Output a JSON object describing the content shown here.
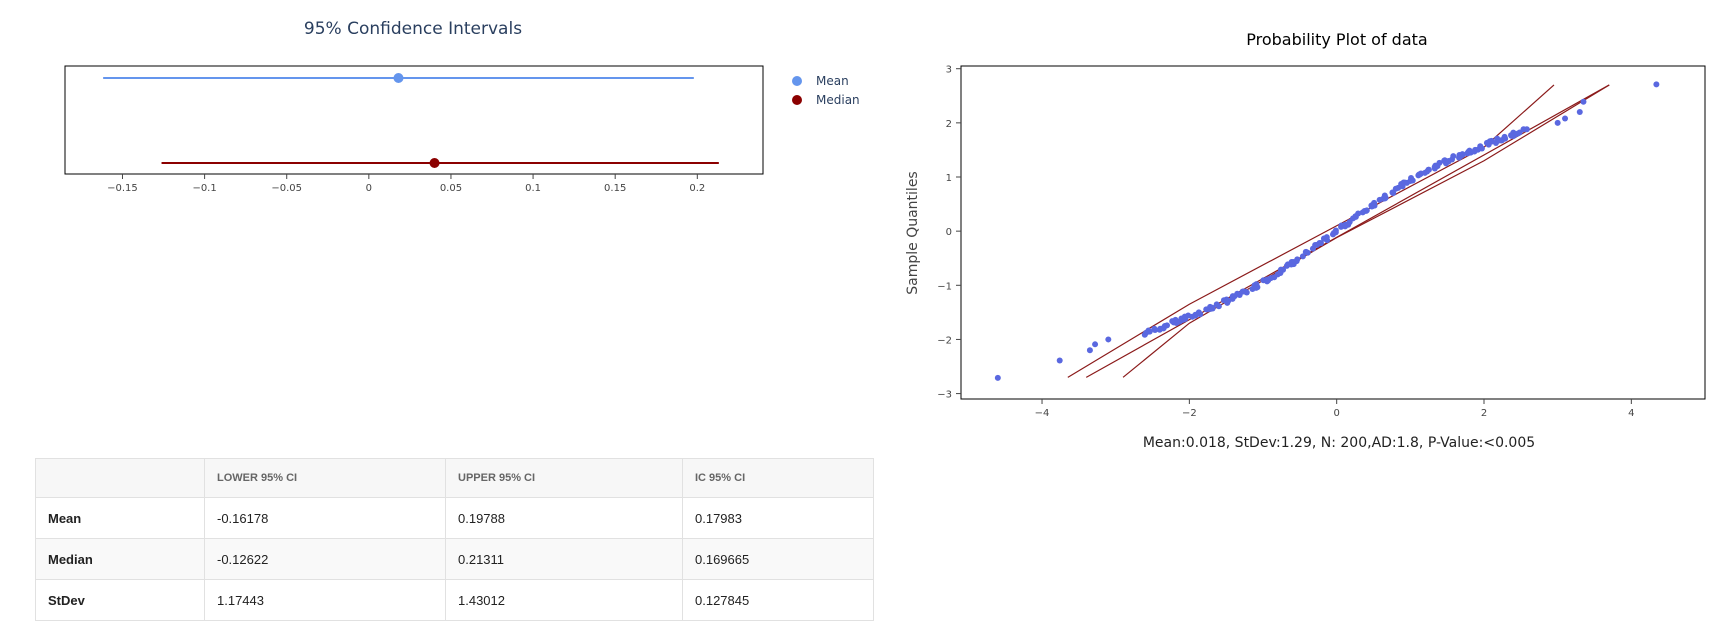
{
  "chart_data": [
    {
      "type": "interval",
      "title": "95% Confidence Intervals",
      "xlim": [
        -0.185,
        0.24
      ],
      "x_ticks": [
        -0.15,
        -0.1,
        -0.05,
        0,
        0.05,
        0.1,
        0.15,
        0.2
      ],
      "x_tick_labels": [
        "−0.15",
        "−0.1",
        "−0.05",
        "0",
        "0.05",
        "0.1",
        "0.15",
        "0.2"
      ],
      "legend_position": "top-right",
      "series": [
        {
          "name": "Mean",
          "lower": -0.16178,
          "upper": 0.19788,
          "center": 0.01805,
          "color": "#6495ed"
        },
        {
          "name": "Median",
          "lower": -0.12622,
          "upper": 0.21311,
          "center": 0.04,
          "color": "#8b0000"
        }
      ]
    },
    {
      "type": "scatter",
      "title": "Probability Plot of data",
      "ylabel": "Sample Quantiles",
      "xlim": [
        -5.1,
        5.0
      ],
      "ylim": [
        -3.1,
        3.05
      ],
      "x_ticks": [
        -4,
        -2,
        0,
        2,
        4
      ],
      "x_tick_labels": [
        "−4",
        "−2",
        "0",
        "2",
        "4"
      ],
      "y_ticks": [
        -3,
        -2,
        -1,
        0,
        1,
        2,
        3
      ],
      "y_tick_labels": [
        "−3",
        "−2",
        "−1",
        "0",
        "1",
        "2",
        "3"
      ],
      "n_points": 200,
      "points_color": "#5a68e0",
      "line_color": "#8b1a1a",
      "fit_line": {
        "x": [
          -3.4,
          3.7
        ],
        "y": [
          -2.7,
          2.7
        ]
      },
      "upper_band": {
        "x": [
          -3.65,
          -2,
          0,
          2,
          2.95
        ],
        "y": [
          -2.7,
          -1.35,
          0.1,
          1.55,
          2.7
        ]
      },
      "lower_band": {
        "x": [
          -2.9,
          -2,
          0,
          2,
          3.7
        ],
        "y": [
          -2.7,
          -1.7,
          -0.12,
          1.3,
          2.7
        ]
      },
      "outliers": [
        {
          "x": -4.6,
          "y": -2.71
        },
        {
          "x": -3.76,
          "y": -2.39
        },
        {
          "x": -3.35,
          "y": -2.2
        },
        {
          "x": -3.28,
          "y": -2.09
        },
        {
          "x": -3.1,
          "y": -2.0
        },
        {
          "x": 3.0,
          "y": 2.0
        },
        {
          "x": 3.1,
          "y": 2.08
        },
        {
          "x": 3.3,
          "y": 2.2
        },
        {
          "x": 3.35,
          "y": 2.39
        },
        {
          "x": 4.34,
          "y": 2.71
        }
      ],
      "footer": "Mean:0.018, StDev:1.29, N: 200,AD:1.8, P-Value:<0.005"
    }
  ],
  "table": {
    "headers": [
      "",
      "LOWER 95% CI",
      "UPPER 95% CI",
      "IC 95% CI"
    ],
    "rows": [
      [
        "Mean",
        "-0.16178",
        "0.19788",
        "0.17983"
      ],
      [
        "Median",
        "-0.12622",
        "0.21311",
        "0.169665"
      ],
      [
        "StDev",
        "1.17443",
        "1.43012",
        "0.127845"
      ]
    ]
  }
}
